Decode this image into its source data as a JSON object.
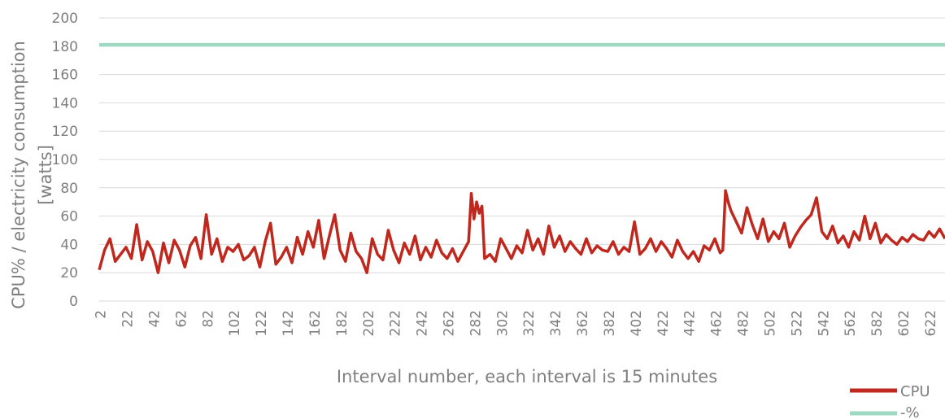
{
  "chart_data": {
    "type": "line",
    "xlabel": "Interval number, each interval is 15 minutes",
    "ylabel_line1": "CPU% / electricity consumption",
    "ylabel_line2": "[watts]",
    "ylim": [
      0,
      200
    ],
    "yticks": [
      0,
      20,
      40,
      60,
      80,
      100,
      120,
      140,
      160,
      180,
      200
    ],
    "xlim": [
      1,
      633
    ],
    "xticks": [
      2,
      22,
      42,
      62,
      82,
      102,
      122,
      142,
      162,
      182,
      202,
      222,
      242,
      262,
      282,
      302,
      322,
      342,
      362,
      382,
      402,
      422,
      442,
      462,
      482,
      502,
      522,
      542,
      562,
      582,
      602,
      622
    ],
    "grid": true,
    "legend_position": "bottom-right",
    "series": [
      {
        "name": "CPU",
        "color": "#c0281e",
        "x": [
          1,
          5,
          9,
          13,
          17,
          21,
          25,
          29,
          33,
          37,
          41,
          45,
          49,
          53,
          57,
          61,
          65,
          69,
          73,
          77,
          81,
          85,
          89,
          93,
          97,
          101,
          105,
          109,
          113,
          117,
          121,
          125,
          129,
          133,
          137,
          141,
          145,
          149,
          153,
          157,
          161,
          165,
          169,
          173,
          177,
          181,
          185,
          189,
          193,
          197,
          201,
          205,
          209,
          213,
          217,
          221,
          225,
          229,
          233,
          237,
          241,
          245,
          249,
          253,
          257,
          261,
          265,
          269,
          273,
          277,
          279,
          281,
          283,
          285,
          287,
          289,
          293,
          297,
          301,
          305,
          309,
          313,
          317,
          321,
          325,
          329,
          333,
          337,
          341,
          345,
          349,
          353,
          357,
          361,
          365,
          369,
          373,
          377,
          381,
          385,
          389,
          393,
          397,
          401,
          405,
          409,
          413,
          417,
          421,
          425,
          429,
          433,
          437,
          441,
          445,
          449,
          453,
          457,
          461,
          465,
          467,
          469,
          471,
          473,
          477,
          481,
          485,
          489,
          493,
          497,
          501,
          505,
          509,
          513,
          517,
          521,
          525,
          529,
          533,
          537,
          541,
          545,
          549,
          553,
          557,
          561,
          565,
          569,
          573,
          577,
          581,
          585,
          589,
          593,
          597,
          601,
          605,
          609,
          613,
          617,
          621,
          625,
          629,
          633
        ],
        "values": [
          22,
          36,
          44,
          28,
          33,
          38,
          30,
          54,
          29,
          42,
          35,
          20,
          41,
          27,
          43,
          36,
          24,
          39,
          45,
          30,
          61,
          33,
          44,
          28,
          38,
          35,
          40,
          29,
          32,
          38,
          24,
          42,
          55,
          26,
          31,
          38,
          27,
          45,
          33,
          49,
          38,
          57,
          30,
          46,
          61,
          36,
          28,
          48,
          35,
          30,
          20,
          44,
          33,
          29,
          50,
          36,
          27,
          41,
          33,
          46,
          29,
          38,
          31,
          43,
          34,
          30,
          37,
          28,
          35,
          42,
          76,
          58,
          70,
          62,
          67,
          30,
          33,
          28,
          44,
          37,
          30,
          39,
          34,
          50,
          36,
          44,
          33,
          53,
          38,
          46,
          35,
          42,
          37,
          33,
          44,
          34,
          39,
          36,
          35,
          42,
          33,
          38,
          35,
          56,
          33,
          37,
          44,
          35,
          42,
          37,
          31,
          43,
          35,
          30,
          35,
          28,
          39,
          36,
          44,
          34,
          36,
          78,
          70,
          64,
          56,
          48,
          66,
          54,
          44,
          58,
          42,
          49,
          44,
          55,
          38,
          46,
          52,
          57,
          61,
          73,
          49,
          44,
          53,
          41,
          46,
          38,
          49,
          43,
          60,
          44,
          55,
          41,
          47,
          43,
          40,
          45,
          42,
          47,
          44,
          43,
          49,
          45,
          51,
          44
        ]
      },
      {
        "name": "-%",
        "color": "#9fd9c3",
        "x": [
          1,
          633
        ],
        "values": [
          181,
          181
        ]
      }
    ]
  }
}
